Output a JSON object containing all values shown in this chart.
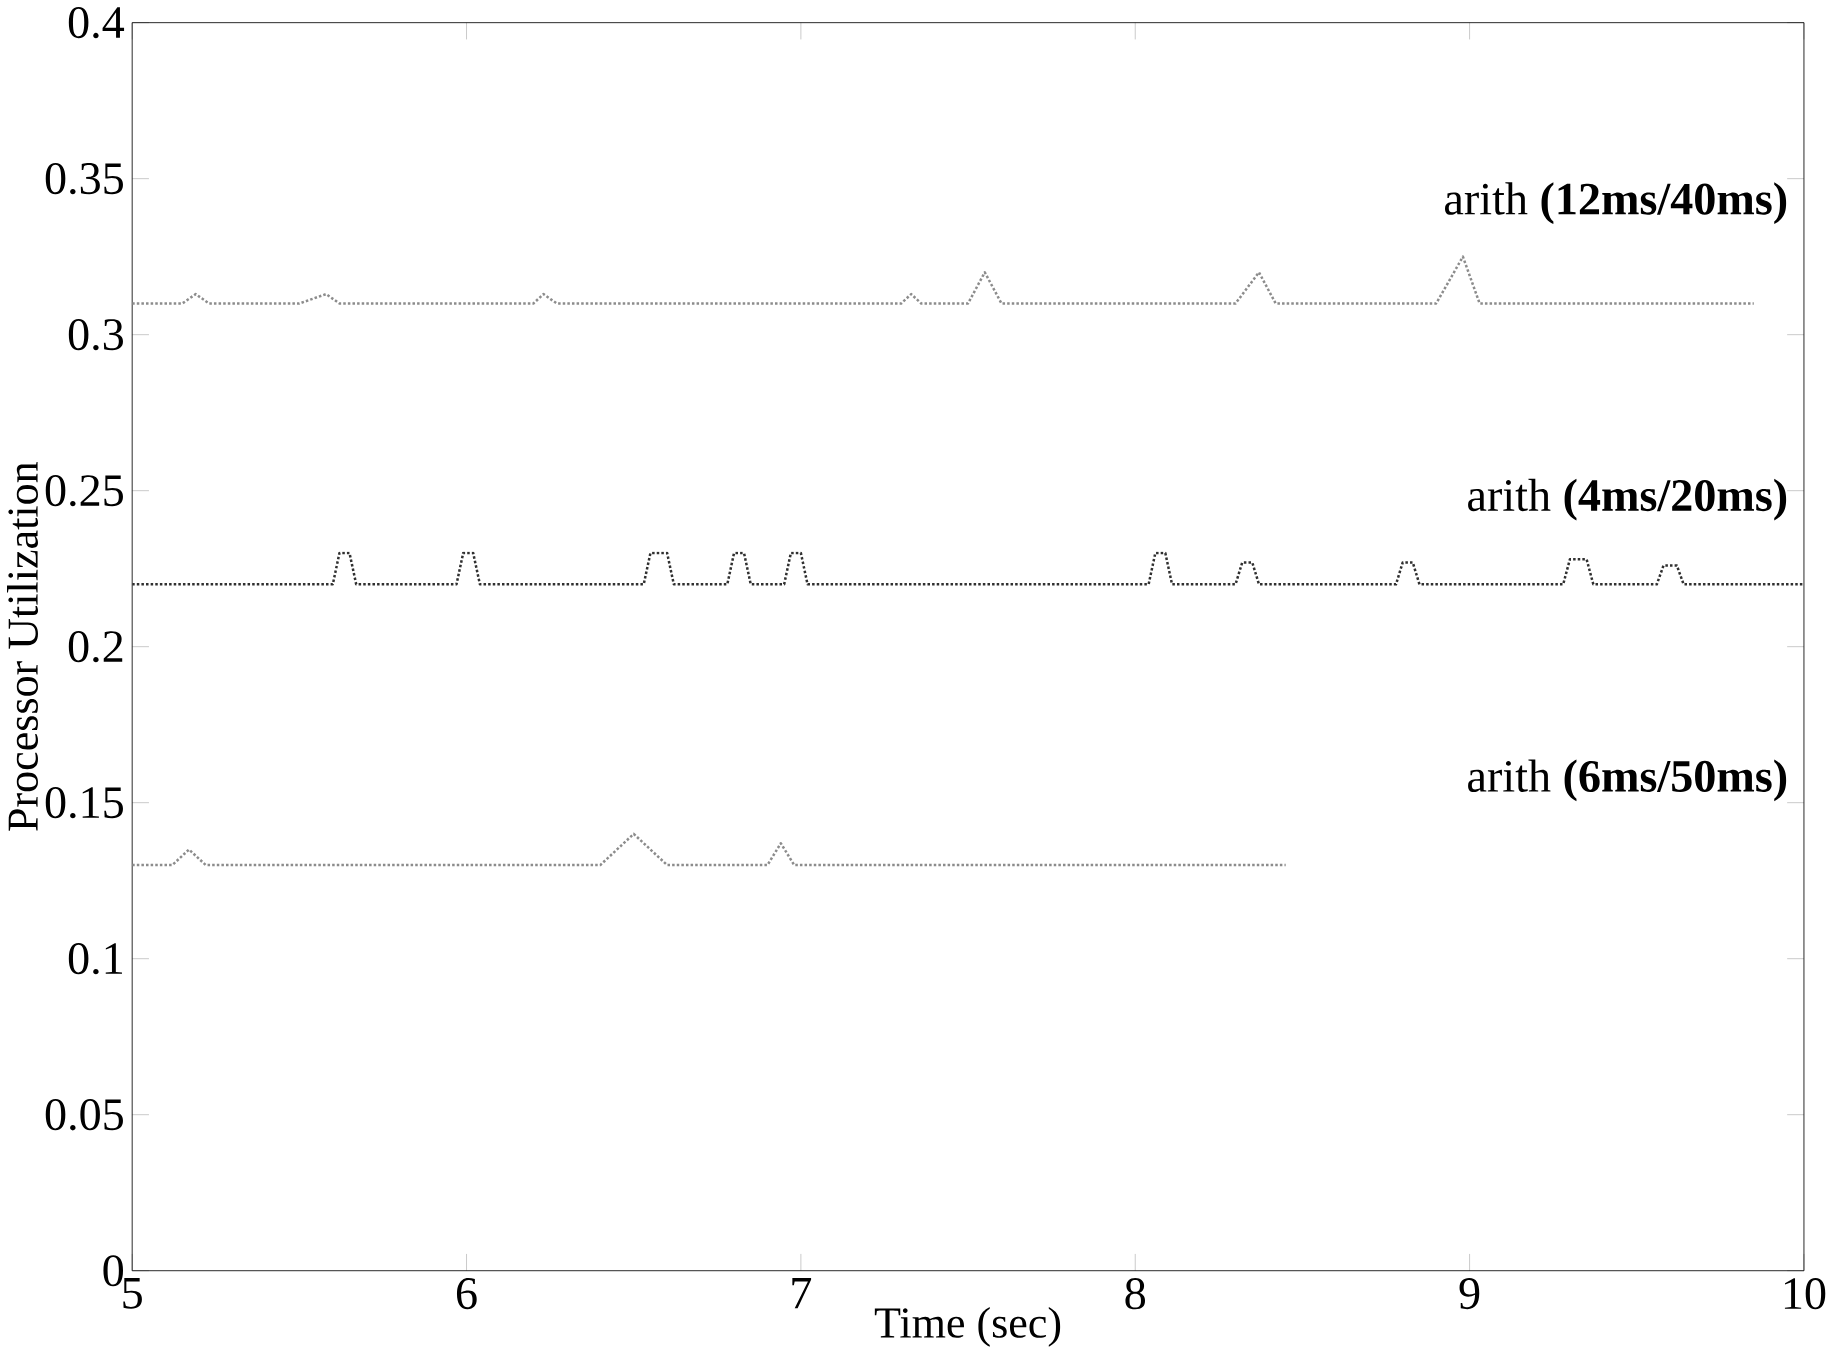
{
  "chart_data": {
    "type": "line",
    "xlabel": "Time (sec)",
    "ylabel": "Processor Utilization",
    "xlim": [
      5,
      10
    ],
    "ylim": [
      0,
      0.4
    ],
    "xticks": [
      5,
      6,
      7,
      8,
      9,
      10
    ],
    "yticks": [
      0,
      0.05,
      0.1,
      0.15,
      0.2,
      0.25,
      0.3,
      0.35,
      0.4
    ],
    "line_style": "dotted",
    "marker": "none",
    "grid": false,
    "annotations": [
      "arith **(12ms/40ms)**",
      "arith **(4ms/20ms)**",
      "arith **(6ms/50ms)**"
    ],
    "series": [
      {
        "color": "#8c8c8c",
        "x": [
          5.0,
          5.15,
          5.19,
          5.23,
          5.5,
          5.58,
          5.62,
          6.2,
          6.23,
          6.27,
          6.9,
          7.3,
          7.33,
          7.36,
          7.5,
          7.55,
          7.6,
          8.3,
          8.37,
          8.42,
          8.9,
          8.98,
          9.03,
          9.5,
          9.85
        ],
        "values": [
          0.31,
          0.31,
          0.313,
          0.31,
          0.31,
          0.313,
          0.31,
          0.31,
          0.313,
          0.31,
          0.31,
          0.31,
          0.313,
          0.31,
          0.31,
          0.32,
          0.31,
          0.31,
          0.32,
          0.31,
          0.31,
          0.325,
          0.31,
          0.31,
          0.31
        ]
      },
      {
        "color": "#303030",
        "x": [
          5.0,
          5.6,
          5.62,
          5.65,
          5.67,
          5.97,
          5.99,
          6.02,
          6.04,
          6.53,
          6.55,
          6.6,
          6.62,
          6.78,
          6.8,
          6.83,
          6.85,
          6.95,
          6.97,
          7.0,
          7.02,
          8.04,
          8.06,
          8.09,
          8.11,
          8.3,
          8.32,
          8.35,
          8.37,
          8.78,
          8.8,
          8.83,
          8.85,
          9.28,
          9.3,
          9.35,
          9.37,
          9.56,
          9.58,
          9.62,
          9.64,
          10.0
        ],
        "values": [
          0.22,
          0.22,
          0.23,
          0.23,
          0.22,
          0.22,
          0.23,
          0.23,
          0.22,
          0.22,
          0.23,
          0.23,
          0.22,
          0.22,
          0.23,
          0.23,
          0.22,
          0.22,
          0.23,
          0.23,
          0.22,
          0.22,
          0.23,
          0.23,
          0.22,
          0.22,
          0.227,
          0.227,
          0.22,
          0.22,
          0.227,
          0.227,
          0.22,
          0.22,
          0.228,
          0.228,
          0.22,
          0.22,
          0.226,
          0.226,
          0.22,
          0.22
        ]
      },
      {
        "color": "#8c8c8c",
        "x": [
          5.0,
          5.12,
          5.17,
          5.22,
          6.4,
          6.5,
          6.6,
          6.9,
          6.94,
          6.98,
          8.45
        ],
        "values": [
          0.13,
          0.13,
          0.135,
          0.13,
          0.13,
          0.14,
          0.13,
          0.13,
          0.137,
          0.13,
          0.13
        ]
      }
    ]
  }
}
